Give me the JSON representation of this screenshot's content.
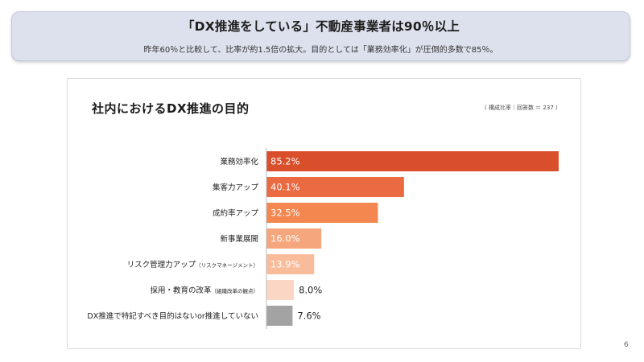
{
  "banner": {
    "title": "「DX推進をしている」不動産事業者は90％以上",
    "subtitle": "昨年60％と比較して、比率が約1.5倍の拡大。目的としては「業務効率化」が圧倒的多数で85％。"
  },
  "page_number": "6",
  "chart_data": {
    "type": "bar",
    "orientation": "horizontal",
    "title": "社内におけるDX推進の目的",
    "note": "（ 構成比率｜回答数 ＝ 237 ）",
    "categories": [
      "業務効率化",
      "集客力アップ",
      "成約率アップ",
      "新事業展開",
      "リスク管理力アップ",
      "採用・教育の改革",
      "DX推進で特記すべき目的はないor推進していない"
    ],
    "category_notes": [
      "",
      "",
      "",
      "",
      "（リスクマネージメント）",
      "（組織改革の観点）",
      ""
    ],
    "values": [
      85.2,
      40.1,
      32.5,
      16.0,
      13.9,
      8.0,
      7.6
    ],
    "value_labels": [
      "85.2%",
      "40.1%",
      "32.5%",
      "16.0%",
      "13.9%",
      "8.0%",
      "7.6%"
    ],
    "colors": [
      "#d94f2b",
      "#ea6a42",
      "#f3874f",
      "#f6a67c",
      "#f8bc9a",
      "#fbd6c4",
      "#a3a3a3"
    ],
    "xlim": [
      0,
      85.2
    ],
    "grid": false,
    "legend": "none"
  }
}
